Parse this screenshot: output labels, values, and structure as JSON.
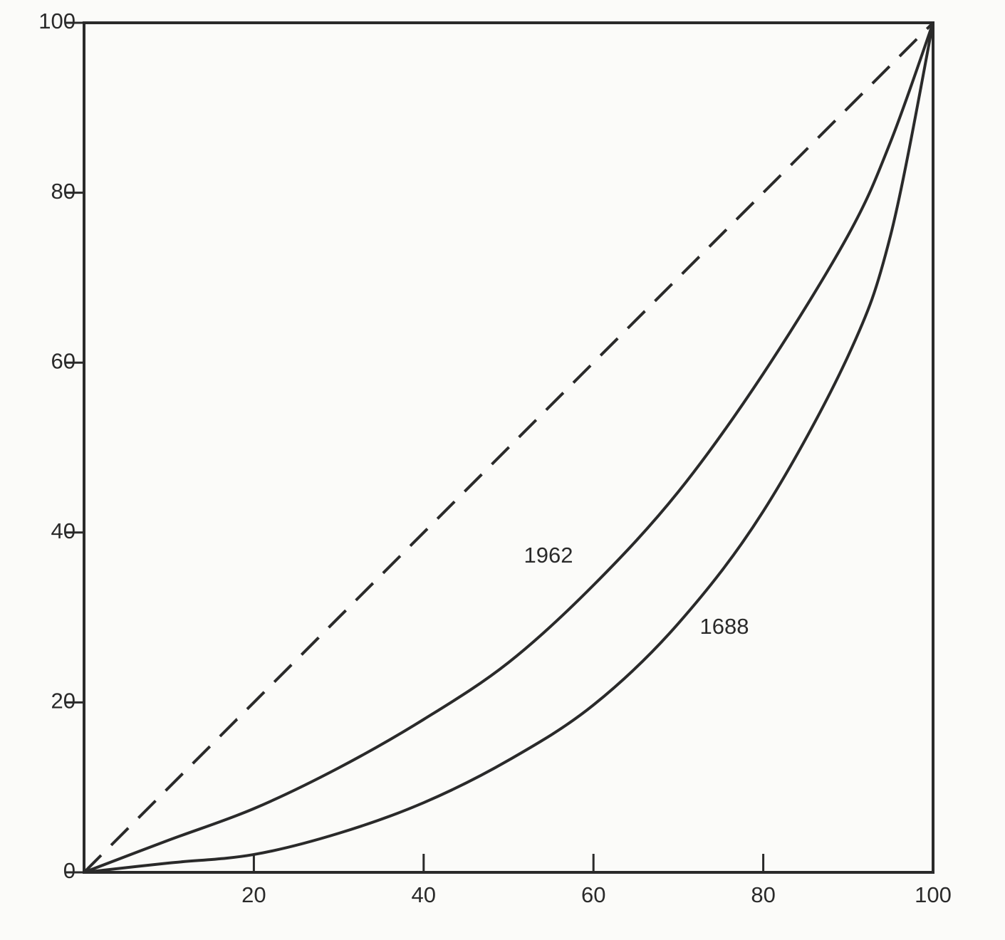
{
  "chart_data": {
    "type": "line",
    "x": [
      0,
      10,
      20,
      30,
      40,
      50,
      60,
      70,
      80,
      90,
      95,
      100
    ],
    "series": [
      {
        "color": "#2a2a2a",
        "dashed": true,
        "values": [
          0,
          10,
          20,
          30,
          40,
          50,
          60,
          70,
          80,
          90,
          95,
          100
        ]
      },
      {
        "name": "1962",
        "color": "#2a2a2a",
        "dashed": false,
        "values": [
          0,
          3.8,
          7.5,
          12.3,
          18,
          24.7,
          33.8,
          44.8,
          58.7,
          75,
          86,
          100
        ]
      },
      {
        "name": "1688",
        "color": "#2a2a2a",
        "dashed": false,
        "values": [
          0,
          1.1,
          2.1,
          4.6,
          8.2,
          13.2,
          19.7,
          29.3,
          42.5,
          60.8,
          75,
          100
        ]
      }
    ],
    "xlim": [
      0,
      100
    ],
    "ylim": [
      0,
      100
    ],
    "xticks": [
      20,
      40,
      60,
      80,
      100
    ],
    "yticks": [
      0,
      20,
      40,
      60,
      80,
      100
    ]
  }
}
